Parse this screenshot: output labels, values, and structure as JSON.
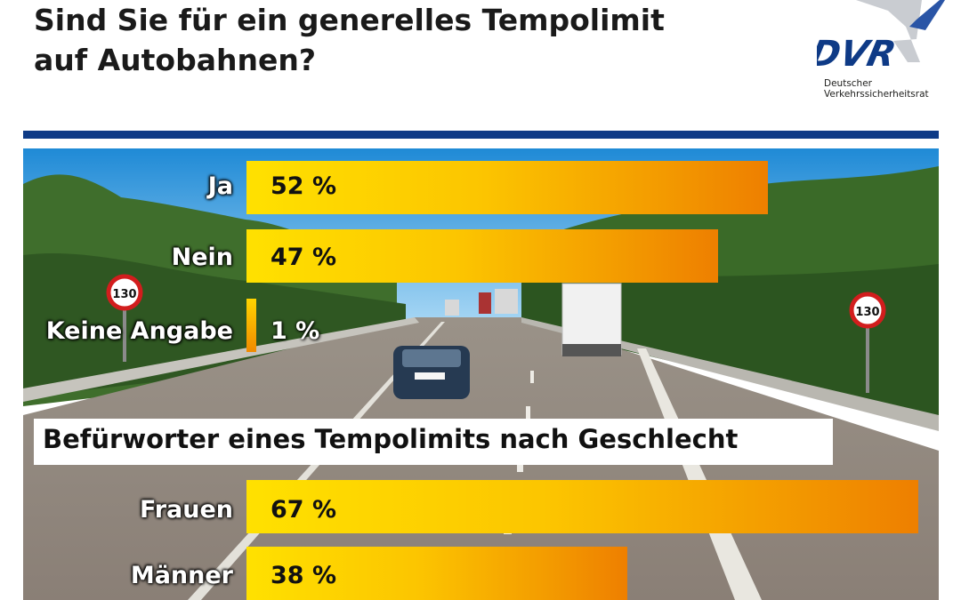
{
  "header": {
    "title_line1": "Sind Sie für ein generelles Tempolimit",
    "title_line2": "auf Autobahnen?"
  },
  "logo": {
    "mark": "DVR",
    "name_line1": "Deutscher",
    "name_line2": "Verkehrssicherheitsrat"
  },
  "colors": {
    "rule": "#0e3a86",
    "bar_start": "#ffe100",
    "bar_end": "#ee7f00",
    "logo_blue": "#0e3a86"
  },
  "sign": {
    "speed": "130"
  },
  "chart_data": [
    {
      "type": "bar",
      "orientation": "horizontal",
      "title": "Sind Sie für ein generelles Tempolimit auf Autobahnen?",
      "categories": [
        "Ja",
        "Nein",
        "Keine Angabe"
      ],
      "values": [
        52,
        47,
        1
      ],
      "value_labels": [
        "52 %",
        "47 %",
        "1 %"
      ],
      "unit": "%"
    },
    {
      "type": "bar",
      "orientation": "horizontal",
      "title": "Befürworter eines Tempolimits nach Geschlecht",
      "categories": [
        "Frauen",
        "Männer"
      ],
      "values": [
        67,
        38
      ],
      "value_labels": [
        "67 %",
        "38 %"
      ],
      "unit": "%"
    }
  ]
}
